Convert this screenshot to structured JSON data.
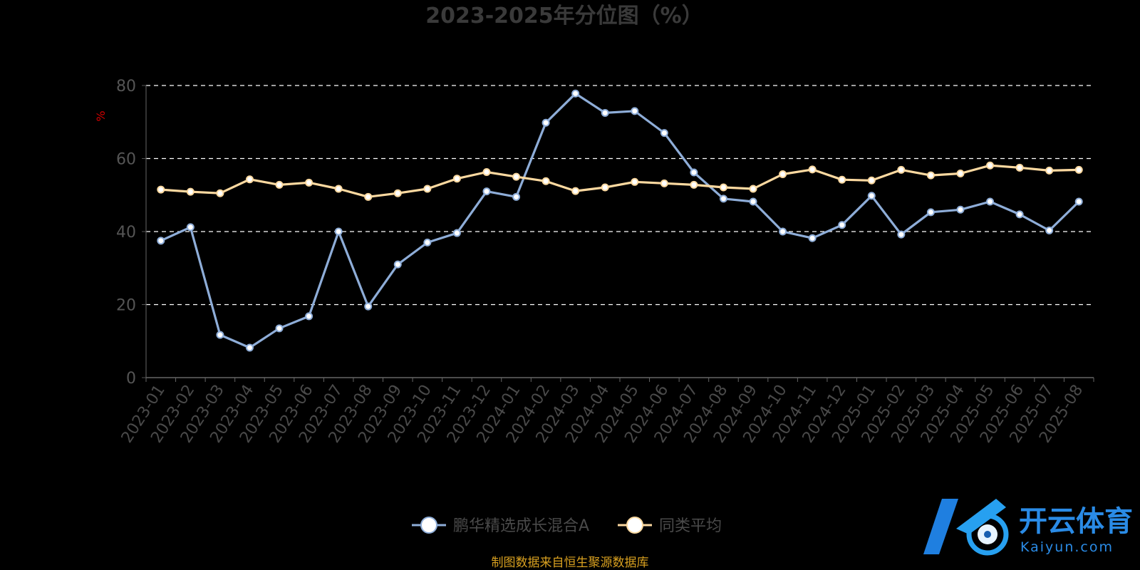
{
  "chart_data": {
    "type": "line",
    "title": "2023-2025年分位图（%）",
    "ylabel": "%",
    "ylim": [
      0,
      80
    ],
    "yticks": [
      0,
      20,
      40,
      60,
      80
    ],
    "grid": true,
    "legend_position": "bottom",
    "categories": [
      "2023-01",
      "2023-02",
      "2023-03",
      "2023-04",
      "2023-05",
      "2023-06",
      "2023-07",
      "2023-08",
      "2023-09",
      "2023-10",
      "2023-11",
      "2023-12",
      "2024-01",
      "2024-02",
      "2024-03",
      "2024-04",
      "2024-05",
      "2024-06",
      "2024-07",
      "2024-08",
      "2024-09",
      "2024-10",
      "2024-11",
      "2024-12",
      "2025-01",
      "2025-02",
      "2025-03",
      "2025-04",
      "2025-05",
      "2025-06",
      "2025-07",
      "2025-08"
    ],
    "series": [
      {
        "name": "鹏华精选成长混合A",
        "color": "#8eadd8",
        "values": [
          37.5,
          41.2,
          11.7,
          8.2,
          13.5,
          16.8,
          40.0,
          19.5,
          31.0,
          37.0,
          39.6,
          51.0,
          49.5,
          69.8,
          77.8,
          72.5,
          73.0,
          67.0,
          56.2,
          49.0,
          48.2,
          40.0,
          38.2,
          41.8,
          49.8,
          39.2,
          45.3,
          46.0,
          48.2,
          44.7,
          40.3,
          48.2
        ]
      },
      {
        "name": "同类平均",
        "color": "#fcd9a0",
        "values": [
          51.5,
          50.9,
          50.5,
          54.3,
          52.8,
          53.4,
          51.7,
          49.5,
          50.5,
          51.7,
          54.5,
          56.3,
          55.0,
          53.8,
          51.1,
          52.1,
          53.6,
          53.2,
          52.8,
          52.1,
          51.7,
          55.7,
          57.0,
          54.2,
          54.0,
          56.9,
          55.4,
          55.9,
          58.1,
          57.5,
          56.7,
          56.9
        ]
      }
    ]
  },
  "source_text": "制图数据来自恒生聚源数据库",
  "watermark": {
    "name": "开云体育",
    "sub": "Kaiyun.com"
  }
}
